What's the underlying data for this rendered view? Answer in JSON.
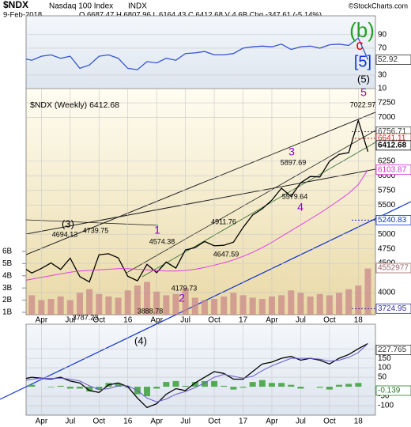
{
  "header": {
    "symbol": "$NDX",
    "name": "Nasdaq 100 Index",
    "exchange": "INDX",
    "credit": "©StockCharts.com",
    "date": "9-Feb-2018",
    "quote": "O 6687.47 H 6807.96 L 6164.43 C 6412.68 V 4.6B Chg -347.61 (-5.14%)"
  },
  "chart_data": [
    {
      "type": "line",
      "ylim": [
        10,
        118
      ],
      "yticks": [
        90,
        70,
        30,
        10
      ],
      "grid": true,
      "series": [
        {
          "color": "#3355cc",
          "values": [
            55,
            52,
            58,
            60,
            55,
            58,
            40,
            45,
            58,
            60,
            55,
            40,
            38,
            50,
            48,
            55,
            52,
            62,
            63,
            65,
            60,
            60,
            62,
            70,
            72,
            73,
            72,
            76,
            68,
            72,
            73,
            70,
            75,
            76,
            74,
            85,
            52.92
          ]
        }
      ],
      "annotations": [
        {
          "text": "(b)",
          "color": "#22a022"
        },
        {
          "text": "c",
          "color": "#dd0000"
        },
        {
          "text": "[5]",
          "color": "#1133cc"
        }
      ]
    },
    {
      "type": "line",
      "title": "$NDX (Weekly) 6412.68",
      "ylim": [
        3621,
        7494
      ],
      "yticks": [
        7250,
        7000,
        6250,
        6000,
        5750,
        5500,
        5000,
        4750,
        4500,
        4000
      ],
      "grid": true,
      "xlim": [
        0,
        37
      ],
      "xticks": [
        {
          "value": 2,
          "label": "Apr"
        },
        {
          "value": 5,
          "label": "Jul"
        },
        {
          "value": 8,
          "label": "Oct"
        },
        {
          "value": 11,
          "label": "16"
        },
        {
          "value": 14,
          "label": "Apr"
        },
        {
          "value": 17,
          "label": "Jul"
        },
        {
          "value": 20,
          "label": "Oct"
        },
        {
          "value": 23,
          "label": "17"
        },
        {
          "value": 26,
          "label": "Apr"
        },
        {
          "value": 29,
          "label": "Jul"
        },
        {
          "value": 32,
          "label": "Oct"
        },
        {
          "value": 35,
          "label": "18"
        }
      ],
      "series": [
        {
          "color": "#000000",
          "values": [
            4440,
            4334,
            4414,
            4508,
            4397,
            4589,
            4274,
            4181,
            4648,
            4665,
            4594,
            4279,
            4202,
            4484,
            4341,
            4523,
            4418,
            4730,
            4771,
            4875,
            4801,
            4810,
            4864,
            5115,
            5330,
            5436,
            5583,
            5788,
            5647,
            5880,
            5988,
            5980,
            6249,
            6367,
            6397,
            6950,
            6412.68
          ]
        },
        {
          "color": "#e040e0",
          "values": [
            4200,
            4230,
            4260,
            4290,
            4320,
            4350,
            4370,
            4380,
            4390,
            4400,
            4410,
            4410,
            4400,
            4390,
            4380,
            4370,
            4370,
            4380,
            4400,
            4430,
            4470,
            4510,
            4560,
            4620,
            4690,
            4770,
            4860,
            4960,
            5060,
            5160,
            5260,
            5360,
            5470,
            5580,
            5700,
            5850,
            6103.87
          ]
        }
      ],
      "levels": [
        {
          "value": 6756.71,
          "color": "#444444"
        },
        {
          "value": 6641.11,
          "color": "#cc2222"
        },
        {
          "value": 5240.83,
          "color": "#1133cc"
        },
        {
          "value": 3724.95,
          "color": "#333399"
        }
      ],
      "volume": {
        "color": "#c98a8a",
        "ylim": [
          0.8,
          19.4
        ],
        "yticks": [
          {
            "value": 6,
            "label": "6B"
          },
          {
            "value": 5,
            "label": "5B"
          },
          {
            "value": 4,
            "label": "4B"
          },
          {
            "value": 3,
            "label": "3B"
          },
          {
            "value": 2,
            "label": "2B"
          },
          {
            "value": 1,
            "label": "1B"
          }
        ],
        "values": [
          2.2,
          2.4,
          2.0,
          2.1,
          2.3,
          2.0,
          2.6,
          2.9,
          2.5,
          2.3,
          2.2,
          2.8,
          3.2,
          3.5,
          2.7,
          2.4,
          2.5,
          3.0,
          2.2,
          2.0,
          2.1,
          2.3,
          2.6,
          2.4,
          2.2,
          2.1,
          2.3,
          2.4,
          2.8,
          2.6,
          2.3,
          2.5,
          2.4,
          2.6,
          2.9,
          3.2,
          4.6
        ],
        "last_label": "4552977"
      },
      "annotations": [
        {
          "text": "(3)",
          "color": "#000000"
        },
        {
          "text": "4694.13",
          "color": "#000000"
        },
        {
          "text": "4739.75",
          "color": "#000000"
        },
        {
          "text": "1",
          "color": "#9900cc"
        },
        {
          "text": "4574.38",
          "color": "#000000"
        },
        {
          "text": "4911.76",
          "color": "#000000"
        },
        {
          "text": "4647.59",
          "color": "#000000"
        },
        {
          "text": "4179.73",
          "color": "#000000"
        },
        {
          "text": "2",
          "color": "#9900cc"
        },
        {
          "text": "3787.23",
          "color": "#000000"
        },
        {
          "text": "3888.78",
          "color": "#000000"
        },
        {
          "text": "3",
          "color": "#9900cc"
        },
        {
          "text": "5897.69",
          "color": "#000000"
        },
        {
          "text": "5579.64",
          "color": "#000000"
        },
        {
          "text": "4",
          "color": "#9900cc"
        },
        {
          "text": "5",
          "color": "#9900cc"
        },
        {
          "text": "(5)",
          "color": "#000000"
        },
        {
          "text": "7022.97",
          "color": "#000000"
        }
      ]
    },
    {
      "type": "line",
      "ylim": [
        -150,
        330
      ],
      "yticks": [
        200,
        150,
        100,
        50,
        -50,
        -100
      ],
      "grid": true,
      "xlim": [
        0,
        37
      ],
      "xticks": [
        {
          "value": 2,
          "label": "Apr"
        },
        {
          "value": 5,
          "label": "Jul"
        },
        {
          "value": 8,
          "label": "Oct"
        },
        {
          "value": 11,
          "label": "16"
        },
        {
          "value": 14,
          "label": "Apr"
        },
        {
          "value": 17,
          "label": "Jul"
        },
        {
          "value": 20,
          "label": "Oct"
        },
        {
          "value": 23,
          "label": "17"
        },
        {
          "value": 26,
          "label": "Apr"
        },
        {
          "value": 29,
          "label": "Jul"
        },
        {
          "value": 32,
          "label": "Oct"
        },
        {
          "value": 35,
          "label": "18"
        }
      ],
      "series": [
        {
          "color": "#000000",
          "values": [
            40,
            50,
            45,
            40,
            50,
            30,
            20,
            -20,
            -30,
            10,
            20,
            0,
            -60,
            -110,
            -90,
            -40,
            -10,
            -20,
            20,
            50,
            80,
            70,
            40,
            40,
            80,
            120,
            130,
            150,
            160,
            140,
            150,
            140,
            120,
            150,
            170,
            200,
            227.765
          ]
        },
        {
          "color": "#6a5acd",
          "values": [
            30,
            40,
            45,
            43,
            45,
            40,
            30,
            5,
            -15,
            -10,
            5,
            5,
            -20,
            -60,
            -80,
            -65,
            -40,
            -25,
            -5,
            20,
            50,
            65,
            55,
            45,
            55,
            85,
            110,
            130,
            150,
            150,
            150,
            145,
            135,
            140,
            155,
            180,
            227.904
          ]
        }
      ],
      "histogram": {
        "color": "#55aa55",
        "values": [
          10,
          10,
          0,
          -3,
          5,
          -10,
          -10,
          -25,
          -15,
          20,
          15,
          -5,
          -40,
          -50,
          -10,
          25,
          30,
          5,
          25,
          30,
          30,
          5,
          -15,
          -5,
          25,
          35,
          20,
          20,
          10,
          -10,
          0,
          -5,
          -15,
          10,
          15,
          20,
          -0.139
        ]
      },
      "annotations": [
        {
          "text": "(4)",
          "color": "#000000"
        }
      ]
    }
  ]
}
